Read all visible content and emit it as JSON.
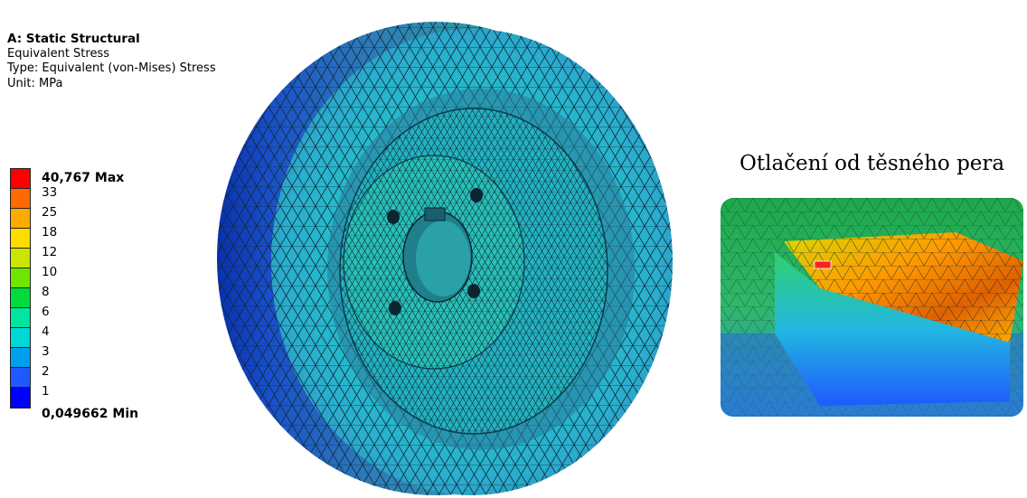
{
  "header": {
    "title": "A: Static Structural",
    "result": "Equivalent Stress",
    "type": "Type: Equivalent (von-Mises) Stress",
    "unit": "Unit: MPa"
  },
  "legend": {
    "max_label": "40,767 Max",
    "min_label": "0,049662 Min",
    "levels": [
      "33",
      "25",
      "18",
      "12",
      "10",
      "8",
      "6",
      "4",
      "3",
      "2",
      "1"
    ],
    "colors": [
      "#ff0000",
      "#ff6a00",
      "#ffaa00",
      "#ffdc00",
      "#c8e600",
      "#6ee600",
      "#00dc3c",
      "#00e6a0",
      "#00d7d7",
      "#00a0f0",
      "#1e5aff",
      "#0000ff"
    ]
  },
  "inset": {
    "caption": "Otlačení od těsného pera"
  }
}
